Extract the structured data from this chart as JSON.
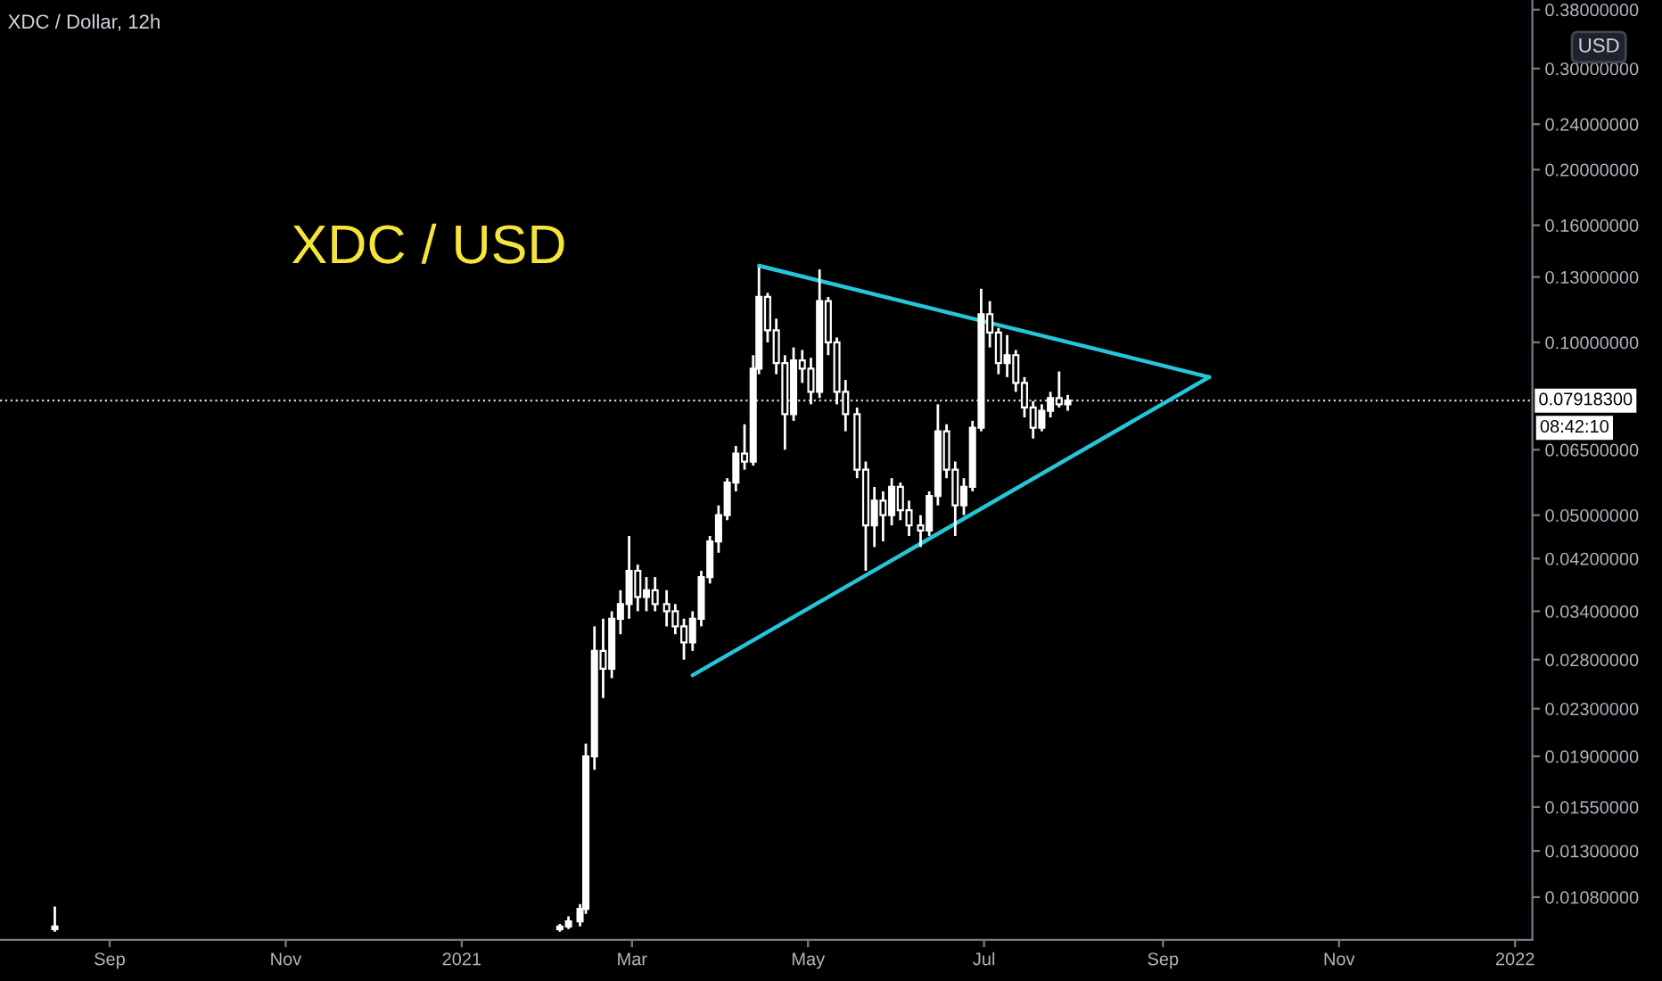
{
  "chart_data": {
    "type": "candlestick",
    "title": "XDC / Dollar, 12h",
    "x": [
      "2020-08-13",
      "2021-02-04",
      "2021-02-07",
      "2021-02-11",
      "2021-02-13",
      "2021-02-16",
      "2021-02-19",
      "2021-02-22",
      "2021-02-25",
      "2021-02-28",
      "2021-03-03",
      "2021-03-06",
      "2021-03-09",
      "2021-03-13",
      "2021-03-16",
      "2021-03-19",
      "2021-03-22",
      "2021-03-25",
      "2021-03-28",
      "2021-03-31",
      "2021-04-03",
      "2021-04-06",
      "2021-04-09",
      "2021-04-12",
      "2021-04-14",
      "2021-04-17",
      "2021-04-20",
      "2021-04-23",
      "2021-04-26",
      "2021-04-29",
      "2021-05-02",
      "2021-05-05",
      "2021-05-08",
      "2021-05-11",
      "2021-05-14",
      "2021-05-18",
      "2021-05-21",
      "2021-05-24",
      "2021-05-27",
      "2021-05-30",
      "2021-06-02",
      "2021-06-05",
      "2021-06-09",
      "2021-06-12",
      "2021-06-15",
      "2021-06-18",
      "2021-06-21",
      "2021-06-24",
      "2021-06-27",
      "2021-06-30",
      "2021-07-03",
      "2021-07-06",
      "2021-07-09",
      "2021-07-12",
      "2021-07-15",
      "2021-07-18",
      "2021-07-21",
      "2021-07-24",
      "2021-07-27",
      "2021-07-30"
    ],
    "ohlc": [
      [
        0.0095,
        0.0104,
        0.0094,
        0.0096
      ],
      [
        0.0095,
        0.0097,
        0.0094,
        0.0096
      ],
      [
        0.0096,
        0.01,
        0.0095,
        0.0098
      ],
      [
        0.0098,
        0.0105,
        0.0096,
        0.0103
      ],
      [
        0.0103,
        0.02,
        0.0101,
        0.019
      ],
      [
        0.019,
        0.032,
        0.018,
        0.029
      ],
      [
        0.029,
        0.033,
        0.024,
        0.027
      ],
      [
        0.027,
        0.034,
        0.026,
        0.033
      ],
      [
        0.033,
        0.037,
        0.031,
        0.035
      ],
      [
        0.035,
        0.046,
        0.033,
        0.04
      ],
      [
        0.04,
        0.041,
        0.034,
        0.036
      ],
      [
        0.036,
        0.039,
        0.034,
        0.037
      ],
      [
        0.037,
        0.039,
        0.034,
        0.035
      ],
      [
        0.035,
        0.037,
        0.032,
        0.034
      ],
      [
        0.034,
        0.035,
        0.031,
        0.032
      ],
      [
        0.032,
        0.033,
        0.028,
        0.03
      ],
      [
        0.03,
        0.034,
        0.029,
        0.033
      ],
      [
        0.033,
        0.04,
        0.032,
        0.039
      ],
      [
        0.039,
        0.046,
        0.038,
        0.045
      ],
      [
        0.045,
        0.052,
        0.043,
        0.05
      ],
      [
        0.05,
        0.058,
        0.049,
        0.057
      ],
      [
        0.057,
        0.066,
        0.055,
        0.064
      ],
      [
        0.064,
        0.072,
        0.06,
        0.062
      ],
      [
        0.062,
        0.095,
        0.061,
        0.09
      ],
      [
        0.09,
        0.135,
        0.088,
        0.12
      ],
      [
        0.12,
        0.122,
        0.1,
        0.105
      ],
      [
        0.105,
        0.11,
        0.088,
        0.092
      ],
      [
        0.092,
        0.095,
        0.065,
        0.075
      ],
      [
        0.075,
        0.098,
        0.073,
        0.093
      ],
      [
        0.093,
        0.097,
        0.085,
        0.09
      ],
      [
        0.09,
        0.094,
        0.078,
        0.082
      ],
      [
        0.082,
        0.134,
        0.08,
        0.118
      ],
      [
        0.118,
        0.12,
        0.095,
        0.1
      ],
      [
        0.1,
        0.102,
        0.078,
        0.082
      ],
      [
        0.082,
        0.086,
        0.07,
        0.075
      ],
      [
        0.075,
        0.077,
        0.058,
        0.06
      ],
      [
        0.06,
        0.062,
        0.04,
        0.048
      ],
      [
        0.048,
        0.056,
        0.044,
        0.053
      ],
      [
        0.053,
        0.055,
        0.045,
        0.05
      ],
      [
        0.05,
        0.058,
        0.048,
        0.056
      ],
      [
        0.056,
        0.057,
        0.049,
        0.051
      ],
      [
        0.051,
        0.053,
        0.046,
        0.048
      ],
      [
        0.048,
        0.05,
        0.044,
        0.047
      ],
      [
        0.047,
        0.055,
        0.046,
        0.054
      ],
      [
        0.054,
        0.078,
        0.052,
        0.07
      ],
      [
        0.07,
        0.072,
        0.058,
        0.06
      ],
      [
        0.06,
        0.062,
        0.046,
        0.052
      ],
      [
        0.052,
        0.058,
        0.05,
        0.056
      ],
      [
        0.056,
        0.073,
        0.055,
        0.071
      ],
      [
        0.071,
        0.124,
        0.07,
        0.112
      ],
      [
        0.112,
        0.118,
        0.098,
        0.104
      ],
      [
        0.104,
        0.106,
        0.088,
        0.092
      ],
      [
        0.092,
        0.103,
        0.087,
        0.095
      ],
      [
        0.095,
        0.097,
        0.082,
        0.085
      ],
      [
        0.085,
        0.087,
        0.074,
        0.077
      ],
      [
        0.077,
        0.079,
        0.068,
        0.071
      ],
      [
        0.071,
        0.078,
        0.07,
        0.076
      ],
      [
        0.076,
        0.082,
        0.074,
        0.08
      ],
      [
        0.08,
        0.089,
        0.077,
        0.078
      ],
      [
        0.078,
        0.081,
        0.076,
        0.079183
      ]
    ],
    "color": "#ffffff",
    "series": [
      {
        "type": "line",
        "color": "#26c6da",
        "x": [
          "2021-04-14",
          "2021-09-17"
        ],
        "values": [
          0.136,
          0.087
        ]
      },
      {
        "type": "line",
        "color": "#26c6da",
        "x": [
          "2021-03-22",
          "2021-09-17"
        ],
        "values": [
          0.0263,
          0.087
        ]
      }
    ],
    "ref_lines": [
      {
        "axis": "y",
        "value": 0.079183,
        "label": "0.07918300",
        "color": "#d1d4dc",
        "line_style": "dotted"
      }
    ],
    "annotations": [
      "XDC / USD",
      "USD",
      "08:42:10"
    ],
    "log": true,
    "grid": false,
    "xlim": [
      "2020-07-25",
      "2022-01-07"
    ],
    "xticks": [
      {
        "value": "2020-09-01",
        "label": "Sep"
      },
      {
        "value": "2020-11-01",
        "label": "Nov"
      },
      {
        "value": "2021-01-01",
        "label": "2021"
      },
      {
        "value": "2021-03-01",
        "label": "Mar"
      },
      {
        "value": "2021-05-01",
        "label": "May"
      },
      {
        "value": "2021-07-01",
        "label": "Jul"
      },
      {
        "value": "2021-09-01",
        "label": "Sep"
      },
      {
        "value": "2021-11-01",
        "label": "Nov"
      },
      {
        "value": "2022-01-01",
        "label": "2022"
      }
    ],
    "ylim": [
      0.0091,
      0.395
    ],
    "yticks": [
      {
        "value": 0.0108,
        "label": "0.01080000"
      },
      {
        "value": 0.013,
        "label": "0.01300000"
      },
      {
        "value": 0.0155,
        "label": "0.01550000"
      },
      {
        "value": 0.019,
        "label": "0.01900000"
      },
      {
        "value": 0.023,
        "label": "0.02300000"
      },
      {
        "value": 0.028,
        "label": "0.02800000"
      },
      {
        "value": 0.034,
        "label": "0.03400000"
      },
      {
        "value": 0.042,
        "label": "0.04200000"
      },
      {
        "value": 0.05,
        "label": "0.05000000"
      },
      {
        "value": 0.065,
        "label": "0.06500000"
      },
      {
        "value": 0.1,
        "label": "0.10000000"
      },
      {
        "value": 0.13,
        "label": "0.13000000"
      },
      {
        "value": 0.16,
        "label": "0.16000000"
      },
      {
        "value": 0.2,
        "label": "0.20000000"
      },
      {
        "value": 0.24,
        "label": "0.24000000"
      },
      {
        "value": 0.3,
        "label": "0.30000000"
      },
      {
        "value": 0.38,
        "label": "0.38000000"
      }
    ]
  }
}
